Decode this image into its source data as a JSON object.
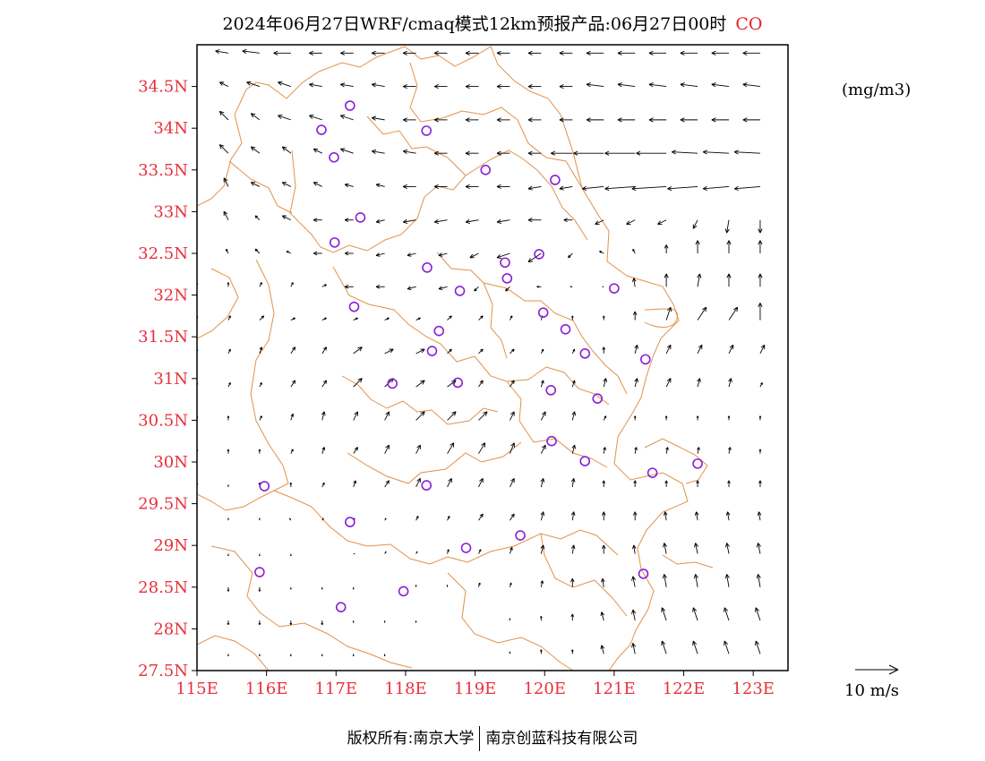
{
  "title": {
    "main": "2024年06月27日WRF/cmaq模式12km预报产品:06月27日00时",
    "species": "CO"
  },
  "unit": "(mg/m3)",
  "ref_vector_label": "10 m/s",
  "footer": {
    "left": "版权所有:南京大学",
    "right": "南京创蓝科技有限公司"
  },
  "colors": {
    "axis_label": "#e8303a",
    "boundary": "#e0924a",
    "station": "#8a1fd6",
    "vector": "#000000"
  },
  "map": {
    "lon_range": [
      115,
      123.5
    ],
    "lat_range": [
      27.5,
      35
    ],
    "x_ticks": [
      {
        "value": 115,
        "label": "115E"
      },
      {
        "value": 116,
        "label": "116E"
      },
      {
        "value": 117,
        "label": "117E"
      },
      {
        "value": 118,
        "label": "118E"
      },
      {
        "value": 119,
        "label": "119E"
      },
      {
        "value": 120,
        "label": "120E"
      },
      {
        "value": 121,
        "label": "121E"
      },
      {
        "value": 122,
        "label": "122E"
      },
      {
        "value": 123,
        "label": "123E"
      }
    ],
    "y_ticks": [
      {
        "value": 27.5,
        "label": "27.5N"
      },
      {
        "value": 28,
        "label": "28N"
      },
      {
        "value": 28.5,
        "label": "28.5N"
      },
      {
        "value": 29,
        "label": "29N"
      },
      {
        "value": 29.5,
        "label": "29.5N"
      },
      {
        "value": 30,
        "label": "30N"
      },
      {
        "value": 30.5,
        "label": "30.5N"
      },
      {
        "value": 31,
        "label": "31N"
      },
      {
        "value": 31.5,
        "label": "31.5N"
      },
      {
        "value": 32,
        "label": "32N"
      },
      {
        "value": 32.5,
        "label": "32.5N"
      },
      {
        "value": 33,
        "label": "33N"
      },
      {
        "value": 33.5,
        "label": "33.5N"
      },
      {
        "value": 34,
        "label": "34N"
      },
      {
        "value": 34.5,
        "label": "34.5N"
      }
    ],
    "stations": [
      {
        "lon": 117.2,
        "lat": 34.27
      },
      {
        "lon": 116.79,
        "lat": 33.98
      },
      {
        "lon": 118.3,
        "lat": 33.97
      },
      {
        "lon": 116.97,
        "lat": 33.65
      },
      {
        "lon": 119.15,
        "lat": 33.5
      },
      {
        "lon": 120.15,
        "lat": 33.38
      },
      {
        "lon": 117.35,
        "lat": 32.93
      },
      {
        "lon": 116.98,
        "lat": 32.63
      },
      {
        "lon": 119.92,
        "lat": 32.49
      },
      {
        "lon": 118.31,
        "lat": 32.33
      },
      {
        "lon": 119.43,
        "lat": 32.39
      },
      {
        "lon": 119.46,
        "lat": 32.2
      },
      {
        "lon": 118.78,
        "lat": 32.05
      },
      {
        "lon": 121.0,
        "lat": 32.08
      },
      {
        "lon": 117.26,
        "lat": 31.86
      },
      {
        "lon": 119.98,
        "lat": 31.79
      },
      {
        "lon": 120.3,
        "lat": 31.59
      },
      {
        "lon": 118.38,
        "lat": 31.33
      },
      {
        "lon": 118.48,
        "lat": 31.57
      },
      {
        "lon": 120.58,
        "lat": 31.3
      },
      {
        "lon": 121.45,
        "lat": 31.23
      },
      {
        "lon": 117.81,
        "lat": 30.94
      },
      {
        "lon": 118.75,
        "lat": 30.95
      },
      {
        "lon": 120.09,
        "lat": 30.86
      },
      {
        "lon": 120.76,
        "lat": 30.76
      },
      {
        "lon": 120.1,
        "lat": 30.25
      },
      {
        "lon": 120.58,
        "lat": 30.01
      },
      {
        "lon": 121.55,
        "lat": 29.87
      },
      {
        "lon": 122.2,
        "lat": 29.98
      },
      {
        "lon": 115.97,
        "lat": 29.71
      },
      {
        "lon": 118.3,
        "lat": 29.72
      },
      {
        "lon": 117.2,
        "lat": 29.28
      },
      {
        "lon": 119.65,
        "lat": 29.12
      },
      {
        "lon": 118.87,
        "lat": 28.97
      },
      {
        "lon": 115.9,
        "lat": 28.68
      },
      {
        "lon": 121.42,
        "lat": 28.66
      },
      {
        "lon": 117.97,
        "lat": 28.45
      },
      {
        "lon": 117.07,
        "lat": 28.26
      }
    ],
    "wind_rows": [
      {
        "lat": 34.9,
        "u": [
          -3,
          -3,
          -4,
          -4,
          -3,
          -3,
          -3,
          -3,
          -3,
          -3,
          -3,
          -3,
          -3,
          -4,
          -4,
          -4,
          -4,
          -4,
          -4
        ],
        "v": [
          0.5,
          0.5,
          0.5,
          0,
          0,
          0,
          0,
          0,
          0,
          0,
          0,
          0,
          0,
          0,
          0,
          0,
          0,
          0,
          0
        ]
      },
      {
        "lat": 34.5,
        "u": [
          -2,
          -2,
          -3,
          -3,
          -3,
          -3,
          -3,
          -3,
          -3,
          -3,
          -3,
          -3,
          -3,
          -4,
          -4,
          -4,
          -4,
          -4,
          -4
        ],
        "v": [
          1,
          1,
          1,
          1,
          0.5,
          0.5,
          0.5,
          0,
          0,
          0,
          0,
          0,
          0,
          0.5,
          0.5,
          0.5,
          0.5,
          0.5,
          0.5
        ]
      },
      {
        "lat": 34.1,
        "u": [
          -2,
          -2,
          -2,
          -3,
          -3,
          -3,
          -3,
          -3,
          -3,
          -3,
          -3,
          -3,
          -3,
          -4,
          -4,
          -4,
          -4,
          -4,
          -4
        ],
        "v": [
          2,
          2,
          1.5,
          1,
          1,
          1,
          0.5,
          0,
          0,
          0,
          0,
          0,
          0,
          0,
          0,
          0,
          0,
          0,
          0
        ]
      },
      {
        "lat": 33.7,
        "u": [
          -2,
          -2,
          -2,
          -2,
          -2,
          -3,
          -3,
          -3,
          -3,
          -3,
          -3,
          -3,
          -5,
          -7,
          -7,
          -7,
          -6,
          -6,
          -6
        ],
        "v": [
          2,
          2,
          1.5,
          1.5,
          1,
          1,
          0.5,
          0.5,
          0,
          0,
          0,
          0,
          0,
          0,
          0,
          0,
          0.3,
          0.3,
          0.3
        ]
      },
      {
        "lat": 33.3,
        "u": [
          -1,
          -1,
          -2,
          -2,
          -2,
          -2,
          -2,
          -3,
          -3,
          -3,
          -3,
          -3,
          -3,
          -5,
          -7,
          -8,
          -7,
          -6,
          -6
        ],
        "v": [
          2,
          2,
          1,
          1,
          1,
          0.5,
          0.5,
          0,
          0,
          0,
          0,
          -0.5,
          -0.5,
          -0.5,
          -0.5,
          -0.5,
          -0.5,
          -0.5,
          -0.5
        ]
      },
      {
        "lat": 32.9,
        "u": [
          -1,
          -1,
          -1,
          -2,
          -2,
          -2,
          -2,
          -3,
          -3,
          -3,
          -3,
          -3,
          -2,
          -2,
          -2,
          -2,
          -1,
          -0.5,
          0
        ],
        "v": [
          2,
          2,
          1,
          1,
          0,
          0,
          -0.5,
          -0.5,
          -0.5,
          -0.5,
          -0.5,
          0,
          0,
          -1,
          -1,
          -1,
          -2,
          -3,
          -3
        ]
      },
      {
        "lat": 32.5,
        "u": [
          -0.3,
          -0.5,
          -1,
          -1,
          -2,
          -2,
          -2,
          -2,
          -2,
          -2,
          -3,
          -3,
          -1,
          -1,
          -0.5,
          0,
          0,
          0,
          0
        ],
        "v": [
          1,
          1,
          1,
          0.5,
          0,
          0,
          -0.5,
          -0.5,
          -0.5,
          -1,
          -1,
          -2,
          -1,
          0.5,
          1,
          2,
          3,
          3,
          3
        ]
      },
      {
        "lat": 32.1,
        "u": [
          0,
          0,
          0.5,
          0.5,
          1,
          -2,
          -2,
          -2,
          -2,
          -1,
          -1,
          -1,
          -0.5,
          -0.3,
          -0.3,
          0,
          0.5,
          0,
          0
        ],
        "v": [
          1,
          1,
          1,
          1,
          0.5,
          0,
          0,
          -0.5,
          -0.5,
          -1,
          -1,
          0,
          0,
          0,
          2,
          3,
          3,
          3,
          3
        ]
      },
      {
        "lat": 31.7,
        "u": [
          0,
          0.5,
          1,
          1,
          1,
          1,
          1,
          1,
          1,
          1,
          0.5,
          0.3,
          0,
          0,
          0,
          1,
          2,
          2,
          0
        ],
        "v": [
          1,
          1,
          1,
          0.5,
          0.5,
          0.5,
          0.5,
          0.5,
          1,
          1,
          1,
          1,
          1,
          1,
          2,
          3,
          3,
          3,
          4
        ]
      },
      {
        "lat": 31.3,
        "u": [
          0,
          0.5,
          0.5,
          1,
          1,
          2,
          2,
          2,
          1,
          1,
          1,
          0.5,
          0.5,
          0,
          0.5,
          1,
          1,
          1,
          1
        ],
        "v": [
          1,
          1,
          1.5,
          1.5,
          1.5,
          1.5,
          1,
          1,
          1,
          1,
          1,
          1,
          1,
          1.5,
          2,
          2,
          2,
          2,
          2
        ]
      },
      {
        "lat": 30.9,
        "u": [
          0,
          0.5,
          0.5,
          1,
          1,
          2,
          2,
          2,
          2,
          1,
          1,
          0.5,
          0.5,
          0.5,
          0.5,
          1,
          0.5,
          0.5,
          0.5
        ],
        "v": [
          1,
          1,
          1,
          1.5,
          1.5,
          2,
          2,
          1.5,
          1.5,
          1.5,
          1.5,
          1.5,
          1.5,
          2,
          2,
          2,
          2,
          2,
          1
        ]
      },
      {
        "lat": 30.5,
        "u": [
          0,
          0,
          0.5,
          0.5,
          0.5,
          1,
          1,
          2,
          2,
          2,
          1,
          1,
          0.5,
          0.5,
          0,
          0,
          0,
          0,
          0
        ],
        "v": [
          1,
          1,
          1,
          1.5,
          2,
          2,
          2,
          2,
          2,
          2,
          2,
          2,
          2,
          1,
          1,
          1,
          1,
          1,
          1
        ]
      },
      {
        "lat": 30.1,
        "u": [
          0,
          0,
          0,
          0.5,
          0.5,
          1,
          1,
          1,
          1.5,
          1.5,
          1,
          1,
          0.5,
          0.3,
          0.3,
          0.3,
          0.3,
          0.3,
          0
        ],
        "v": [
          1,
          1,
          1,
          1,
          1.5,
          1.5,
          2,
          2,
          2.5,
          2.5,
          2.5,
          2,
          2,
          1.5,
          1.5,
          1.5,
          1.5,
          1.5,
          1
        ]
      },
      {
        "lat": 29.7,
        "u": [
          0,
          0,
          0,
          0,
          0.5,
          0.5,
          1,
          1,
          1,
          1,
          1,
          0.5,
          0.3,
          0,
          0,
          0,
          0,
          0,
          0
        ],
        "v": [
          1,
          0.5,
          1,
          1,
          1,
          1.5,
          1.5,
          2,
          2,
          2,
          2,
          2,
          2,
          1.5,
          1.5,
          1.5,
          1.5,
          1.5,
          1.5
        ]
      },
      {
        "lat": 29.3,
        "u": [
          0,
          0,
          0,
          -0.3,
          0.3,
          0.3,
          0.3,
          0.5,
          0.5,
          1,
          1,
          0.5,
          0.3,
          0,
          0,
          -0.3,
          -0.3,
          -0.3,
          -0.3
        ],
        "v": [
          0.5,
          0.5,
          0.5,
          0.5,
          0.5,
          0.5,
          0.5,
          1,
          1,
          1.5,
          1.5,
          2,
          2,
          2,
          2,
          2,
          2,
          2,
          2
        ]
      },
      {
        "lat": 28.9,
        "u": [
          0,
          0,
          0,
          0,
          0,
          0.3,
          0.3,
          0.3,
          0.3,
          0.5,
          0.5,
          0.5,
          0.3,
          0,
          -0.3,
          -0.5,
          -0.5,
          -0.5,
          -0.5
        ],
        "v": [
          -0.5,
          -0.5,
          -0.5,
          -0.5,
          0,
          0,
          0.5,
          0.5,
          1,
          1,
          1.5,
          2,
          2,
          2,
          2,
          2.5,
          2.5,
          2.5,
          2.5
        ]
      },
      {
        "lat": 28.5,
        "u": [
          0,
          0,
          0,
          0,
          0,
          0,
          0,
          0,
          0,
          0.3,
          0.3,
          0.3,
          0,
          -0.3,
          -0.5,
          -0.5,
          -0.5,
          -0.5,
          -0.5
        ],
        "v": [
          -0.5,
          -1,
          -1,
          -0.5,
          -0.5,
          -0.5,
          0,
          0.5,
          0.5,
          1,
          1,
          1.5,
          2,
          2,
          2.5,
          3,
          3,
          3,
          3
        ]
      },
      {
        "lat": 28.1,
        "u": [
          0,
          0,
          0,
          0,
          0,
          0,
          0,
          0,
          0,
          0,
          0,
          0,
          0,
          -0.5,
          -0.5,
          -1,
          -1,
          -1,
          -1
        ],
        "v": [
          -0.5,
          -1,
          -1,
          -1,
          -1,
          -0.5,
          -0.5,
          -0.5,
          0,
          0,
          0.5,
          1,
          1.5,
          2,
          2.5,
          3,
          3,
          3,
          3
        ]
      },
      {
        "lat": 27.7,
        "u": [
          0,
          0,
          0,
          0,
          0,
          0,
          0,
          0,
          0,
          0,
          0,
          0,
          0,
          -0.5,
          -0.5,
          -1,
          -1,
          -1,
          -1
        ],
        "v": [
          -0.5,
          -0.5,
          -0.5,
          -0.5,
          -0.5,
          -0.5,
          -0.5,
          0,
          0,
          0,
          0.5,
          1,
          1,
          2,
          2.5,
          3,
          3,
          3,
          3
        ]
      }
    ],
    "wind_lons": [
      115.0,
      115.45,
      115.9,
      116.35,
      116.8,
      117.25,
      117.7,
      118.15,
      118.6,
      119.05,
      119.5,
      119.95,
      120.4,
      120.85,
      121.3,
      121.75,
      122.2,
      122.65,
      123.1
    ]
  }
}
